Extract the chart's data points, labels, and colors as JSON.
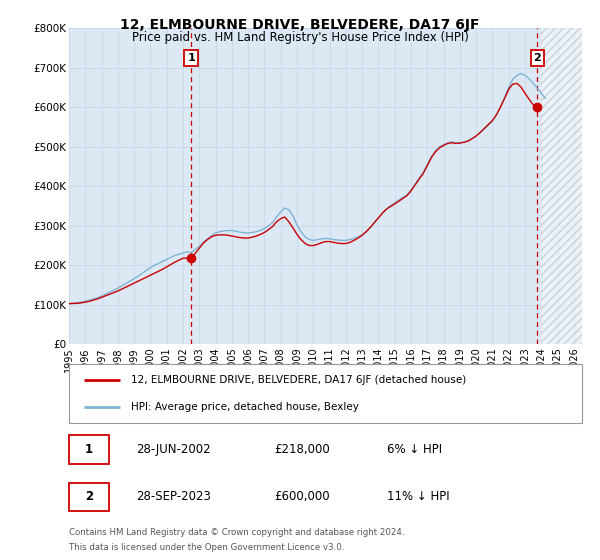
{
  "title": "12, ELMBOURNE DRIVE, BELVEDERE, DA17 6JF",
  "subtitle": "Price paid vs. HM Land Registry's House Price Index (HPI)",
  "background_color": "#ffffff",
  "plot_bg_color": "#dce9f5",
  "grid_color": "#c8d8e8",
  "ylim": [
    0,
    800000
  ],
  "yticks": [
    0,
    100000,
    200000,
    300000,
    400000,
    500000,
    600000,
    700000,
    800000
  ],
  "ytick_labels": [
    "£0",
    "£100K",
    "£200K",
    "£300K",
    "£400K",
    "£500K",
    "£600K",
    "£700K",
    "£800K"
  ],
  "xlim_start": 1995,
  "xlim_end": 2026.5,
  "hatch_start": 2024.0,
  "xticks": [
    1995,
    1996,
    1997,
    1998,
    1999,
    2000,
    2001,
    2002,
    2003,
    2004,
    2005,
    2006,
    2007,
    2008,
    2009,
    2010,
    2011,
    2012,
    2013,
    2014,
    2015,
    2016,
    2017,
    2018,
    2019,
    2020,
    2021,
    2022,
    2023,
    2024,
    2025,
    2026
  ],
  "hpi_color": "#7fb3d3",
  "price_color": "#cc0000",
  "sale1_x": 2002.5,
  "sale1_y": 218000,
  "sale1_label": "1",
  "sale1_date": "28-JUN-2002",
  "sale1_price": "£218,000",
  "sale1_hpi": "6% ↓ HPI",
  "sale2_x": 2023.75,
  "sale2_y": 600000,
  "sale2_label": "2",
  "sale2_date": "28-SEP-2023",
  "sale2_price": "£600,000",
  "sale2_hpi": "11% ↓ HPI",
  "legend1": "12, ELMBOURNE DRIVE, BELVEDERE, DA17 6JF (detached house)",
  "legend2": "HPI: Average price, detached house, Bexley",
  "footer1": "Contains HM Land Registry data © Crown copyright and database right 2024.",
  "footer2": "This data is licensed under the Open Government Licence v3.0.",
  "hpi_x": [
    1995,
    1995.25,
    1995.5,
    1995.75,
    1996,
    1996.25,
    1996.5,
    1996.75,
    1997,
    1997.25,
    1997.5,
    1997.75,
    1998,
    1998.25,
    1998.5,
    1998.75,
    1999,
    1999.25,
    1999.5,
    1999.75,
    2000,
    2000.25,
    2000.5,
    2000.75,
    2001,
    2001.25,
    2001.5,
    2001.75,
    2002,
    2002.25,
    2002.5,
    2002.75,
    2003,
    2003.25,
    2003.5,
    2003.75,
    2004,
    2004.25,
    2004.5,
    2004.75,
    2005,
    2005.25,
    2005.5,
    2005.75,
    2006,
    2006.25,
    2006.5,
    2006.75,
    2007,
    2007.25,
    2007.5,
    2007.75,
    2008,
    2008.25,
    2008.5,
    2008.75,
    2009,
    2009.25,
    2009.5,
    2009.75,
    2010,
    2010.25,
    2010.5,
    2010.75,
    2011,
    2011.25,
    2011.5,
    2011.75,
    2012,
    2012.25,
    2012.5,
    2012.75,
    2013,
    2013.25,
    2013.5,
    2013.75,
    2014,
    2014.25,
    2014.5,
    2014.75,
    2015,
    2015.25,
    2015.5,
    2015.75,
    2016,
    2016.25,
    2016.5,
    2016.75,
    2017,
    2017.25,
    2017.5,
    2017.75,
    2018,
    2018.25,
    2018.5,
    2018.75,
    2019,
    2019.25,
    2019.5,
    2019.75,
    2020,
    2020.25,
    2020.5,
    2020.75,
    2021,
    2021.25,
    2021.5,
    2021.75,
    2022,
    2022.25,
    2022.5,
    2022.75,
    2023,
    2023.25,
    2023.5,
    2023.75,
    2024,
    2024.25
  ],
  "hpi_y": [
    103000,
    104000,
    105000,
    107000,
    109000,
    112000,
    115000,
    118000,
    122000,
    127000,
    132000,
    137000,
    142000,
    148000,
    154000,
    160000,
    166000,
    173000,
    180000,
    187000,
    194000,
    200000,
    205000,
    210000,
    215000,
    220000,
    225000,
    228000,
    231000,
    234000,
    232000,
    240000,
    248000,
    258000,
    267000,
    275000,
    282000,
    285000,
    287000,
    288000,
    288000,
    286000,
    284000,
    282000,
    282000,
    283000,
    285000,
    288000,
    293000,
    300000,
    308000,
    322000,
    335000,
    345000,
    340000,
    325000,
    302000,
    285000,
    272000,
    265000,
    263000,
    265000,
    267000,
    268000,
    267000,
    265000,
    264000,
    263000,
    263000,
    265000,
    268000,
    272000,
    277000,
    285000,
    295000,
    308000,
    320000,
    333000,
    343000,
    351000,
    358000,
    365000,
    372000,
    378000,
    390000,
    405000,
    420000,
    435000,
    455000,
    475000,
    490000,
    500000,
    505000,
    510000,
    512000,
    510000,
    510000,
    512000,
    515000,
    520000,
    527000,
    535000,
    545000,
    555000,
    565000,
    580000,
    600000,
    625000,
    650000,
    670000,
    680000,
    685000,
    680000,
    672000,
    660000,
    648000,
    635000,
    622000
  ],
  "price_x": [
    1995.0,
    1995.25,
    1995.5,
    1995.75,
    1996,
    1996.25,
    1996.5,
    1996.75,
    1997,
    1997.25,
    1997.5,
    1997.75,
    1998,
    1998.25,
    1998.5,
    1998.75,
    1999,
    1999.25,
    1999.5,
    1999.75,
    2000,
    2000.25,
    2000.5,
    2000.75,
    2001,
    2001.25,
    2001.5,
    2001.75,
    2002,
    2002.25,
    2002.5,
    2002.75,
    2003,
    2003.25,
    2003.5,
    2003.75,
    2004,
    2004.25,
    2004.5,
    2004.75,
    2005,
    2005.25,
    2005.5,
    2005.75,
    2006,
    2006.25,
    2006.5,
    2006.75,
    2007,
    2007.25,
    2007.5,
    2007.75,
    2008,
    2008.25,
    2008.5,
    2008.75,
    2009,
    2009.25,
    2009.5,
    2009.75,
    2010,
    2010.25,
    2010.5,
    2010.75,
    2011,
    2011.25,
    2011.5,
    2011.75,
    2012,
    2012.25,
    2012.5,
    2012.75,
    2013,
    2013.25,
    2013.5,
    2013.75,
    2014,
    2014.25,
    2014.5,
    2014.75,
    2015,
    2015.25,
    2015.5,
    2015.75,
    2016,
    2016.25,
    2016.5,
    2016.75,
    2017,
    2017.25,
    2017.5,
    2017.75,
    2018,
    2018.25,
    2018.5,
    2018.75,
    2019,
    2019.25,
    2019.5,
    2019.75,
    2020,
    2020.25,
    2020.5,
    2020.75,
    2021,
    2021.25,
    2021.5,
    2021.75,
    2022,
    2022.25,
    2022.5,
    2022.75,
    2023,
    2023.25,
    2023.5,
    2023.75
  ],
  "price_y": [
    103000,
    103500,
    104000,
    105000,
    107000,
    109000,
    112000,
    115000,
    119000,
    123000,
    127000,
    131000,
    135000,
    140000,
    145000,
    150000,
    155000,
    160000,
    165000,
    170000,
    175000,
    180000,
    185000,
    190000,
    196000,
    202000,
    208000,
    213000,
    218000,
    218000,
    218000,
    230000,
    243000,
    256000,
    265000,
    272000,
    276000,
    277000,
    277000,
    276000,
    274000,
    272000,
    270000,
    269000,
    269000,
    271000,
    274000,
    278000,
    283000,
    290000,
    298000,
    310000,
    318000,
    322000,
    310000,
    295000,
    278000,
    265000,
    255000,
    250000,
    250000,
    253000,
    257000,
    260000,
    260000,
    258000,
    256000,
    255000,
    255000,
    258000,
    263000,
    269000,
    276000,
    285000,
    296000,
    308000,
    320000,
    332000,
    342000,
    349000,
    355000,
    362000,
    369000,
    376000,
    388000,
    403000,
    418000,
    432000,
    452000,
    472000,
    487000,
    497000,
    503000,
    508000,
    510000,
    508000,
    509000,
    511000,
    514000,
    520000,
    527000,
    536000,
    546000,
    556000,
    566000,
    581000,
    601000,
    622000,
    645000,
    658000,
    660000,
    651000,
    635000,
    620000,
    606000,
    600000
  ]
}
